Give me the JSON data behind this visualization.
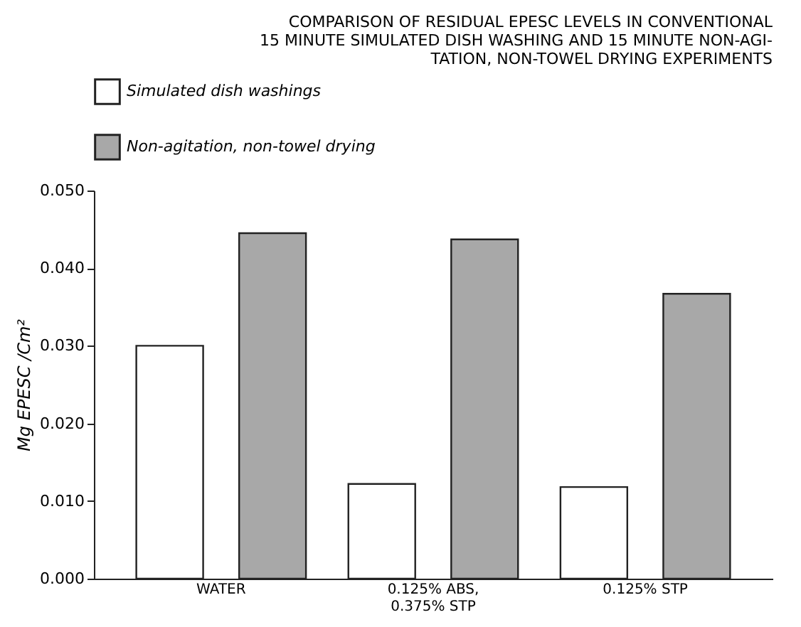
{
  "chart_data": {
    "type": "bar",
    "title": [
      "COMPARISON OF RESIDUAL EPESC LEVELS IN CONVENTIONAL",
      "15 MINUTE SIMULATED DISH WASHING AND 15 MINUTE NON-AGI-",
      "TATION, NON-TOWEL DRYING EXPERIMENTS"
    ],
    "ylabel": "Mg EPESC /Cm²",
    "categories": [
      "WATER",
      "0.125% ABS,\n0.375% STP",
      "0.125% STP"
    ],
    "series": [
      {
        "name": "Simulated dish washings",
        "color": "#ffffff",
        "values": [
          0.03,
          0.0122,
          0.0118
        ]
      },
      {
        "name": "Non-agitation, non-towel drying",
        "color": "#a8a8a8",
        "values": [
          0.0445,
          0.0437,
          0.0367
        ]
      }
    ],
    "ylim": [
      0,
      0.05
    ],
    "yticks": [
      {
        "value": 0,
        "label": "0.000"
      },
      {
        "value": 0.01,
        "label": "0.010"
      },
      {
        "value": 0.02,
        "label": "0.020"
      },
      {
        "value": 0.03,
        "label": "0.030"
      },
      {
        "value": 0.04,
        "label": "0.040"
      },
      {
        "value": 0.05,
        "label": "0.050"
      }
    ],
    "grid": false,
    "legend": "top"
  }
}
